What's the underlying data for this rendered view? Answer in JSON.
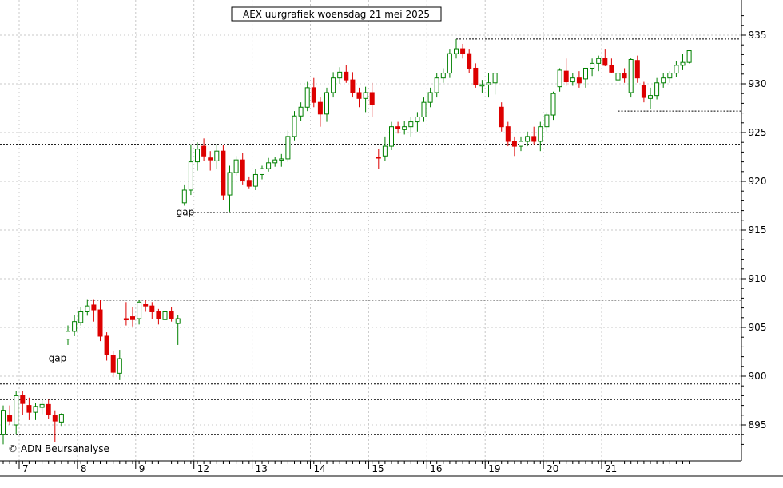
{
  "chart_data": {
    "type": "candlestick",
    "title": "AEX uurgrafiek woensdag 21 mei 2025",
    "credit": "© ADN Beursanalyse",
    "ylim": [
      891,
      937
    ],
    "y_ticks": [
      895,
      900,
      905,
      910,
      915,
      920,
      925,
      930,
      935
    ],
    "x_day_labels": [
      "7",
      "8",
      "9",
      "12",
      "13",
      "14",
      "15",
      "16",
      "19",
      "20",
      "21"
    ],
    "bars_per_day": 9,
    "grid": true,
    "annotations": [
      {
        "text": "gap",
        "bar": 7,
        "y": 901.5,
        "color": "#b0b0b0"
      },
      {
        "text": "gap",
        "bar": 26,
        "y": 916.5,
        "color": "#000000"
      }
    ],
    "levels": [
      {
        "y": 894.0,
        "from_bar": 0,
        "to_bar": 109
      },
      {
        "y": 897.6,
        "from_bar": 0,
        "to_bar": 109
      },
      {
        "y": 899.2,
        "from_bar": 0,
        "to_bar": 109
      },
      {
        "y": 907.8,
        "from_bar": 13,
        "to_bar": 109
      },
      {
        "y": 916.8,
        "from_bar": 29,
        "to_bar": 109
      },
      {
        "y": 923.8,
        "from_bar": 0,
        "to_bar": 109
      },
      {
        "y": 927.2,
        "from_bar": 95,
        "to_bar": 109
      },
      {
        "y": 934.6,
        "from_bar": 70,
        "to_bar": 109
      }
    ],
    "candles": [
      [
        894,
        897,
        893,
        896.5
      ],
      [
        896,
        897,
        895,
        895.4
      ],
      [
        895,
        898.5,
        894,
        898
      ],
      [
        898,
        898.5,
        896,
        897.2
      ],
      [
        897,
        897.8,
        895.5,
        896.3
      ],
      [
        896.3,
        897.3,
        895.5,
        896.9
      ],
      [
        896.8,
        897.7,
        896.1,
        897.1
      ],
      [
        897.1,
        897.6,
        895.6,
        896.1
      ],
      [
        896,
        896.5,
        893.2,
        895.4
      ],
      [
        895.3,
        896.2,
        894.9,
        896.1
      ],
      [
        903.8,
        905.2,
        903.2,
        904.6
      ],
      [
        904.6,
        906.3,
        904.1,
        905.6
      ],
      [
        905.5,
        907.1,
        905.2,
        906.6
      ],
      [
        906.6,
        907.9,
        906.2,
        907.2
      ],
      [
        907.3,
        907.9,
        905.6,
        906.8
      ],
      [
        906.8,
        907.8,
        903.6,
        904.1
      ],
      [
        904.1,
        904.5,
        901.6,
        902.2
      ],
      [
        902.1,
        902.6,
        899.9,
        900.4
      ],
      [
        900.3,
        902.7,
        899.6,
        901.8
      ],
      [
        905.9,
        907.6,
        905.2,
        905.8
      ],
      [
        906.1,
        907.1,
        905.1,
        905.8
      ],
      [
        905.9,
        907.8,
        905.3,
        907.6
      ],
      [
        907.4,
        907.8,
        906.6,
        907.2
      ],
      [
        907.2,
        907.6,
        905.9,
        906.6
      ],
      [
        906.6,
        906.9,
        905.3,
        905.9
      ],
      [
        905.8,
        907.3,
        905.5,
        906.6
      ],
      [
        906.6,
        907.1,
        905.6,
        905.9
      ],
      [
        905.4,
        906.3,
        903.2,
        905.9
      ],
      [
        917.8,
        919.6,
        917.5,
        919.1
      ],
      [
        919.1,
        923.8,
        918.6,
        922.0
      ],
      [
        922.0,
        924.0,
        921.1,
        923.3
      ],
      [
        923.6,
        924.4,
        922.1,
        922.6
      ],
      [
        922.4,
        923.1,
        921.1,
        922.2
      ],
      [
        922.1,
        923.8,
        921.3,
        923.1
      ],
      [
        923.1,
        923.7,
        918.1,
        918.6
      ],
      [
        918.6,
        921.6,
        916.9,
        920.9
      ],
      [
        920.9,
        922.6,
        920.6,
        922.2
      ],
      [
        922.2,
        922.9,
        919.6,
        920.1
      ],
      [
        920.1,
        920.5,
        919.2,
        919.5
      ],
      [
        919.5,
        921.3,
        919.1,
        920.7
      ],
      [
        920.7,
        921.6,
        920.2,
        921.3
      ],
      [
        921.3,
        922.4,
        921.0,
        921.9
      ],
      [
        921.9,
        922.5,
        921.5,
        922.2
      ],
      [
        922.2,
        922.8,
        921.5,
        922.3
      ],
      [
        922.3,
        925.2,
        922.0,
        924.6
      ],
      [
        924.6,
        927.2,
        924.2,
        926.7
      ],
      [
        926.7,
        928.1,
        926.2,
        927.6
      ],
      [
        927.6,
        930.2,
        927.2,
        929.6
      ],
      [
        929.6,
        930.6,
        927.6,
        928.1
      ],
      [
        928.1,
        928.6,
        925.6,
        926.9
      ],
      [
        926.9,
        929.6,
        926.1,
        929.1
      ],
      [
        929.1,
        931.2,
        928.6,
        930.6
      ],
      [
        930.6,
        931.7,
        930.0,
        931.2
      ],
      [
        931.2,
        931.9,
        930.1,
        930.4
      ],
      [
        930.4,
        931.2,
        928.6,
        929.1
      ],
      [
        929.1,
        929.6,
        927.6,
        928.5
      ],
      [
        928.5,
        929.7,
        927.1,
        929.1
      ],
      [
        929.1,
        930.1,
        926.6,
        927.9
      ],
      [
        922.5,
        923.3,
        921.3,
        922.4
      ],
      [
        922.6,
        924.6,
        922.1,
        923.6
      ],
      [
        923.6,
        926.1,
        923.2,
        925.6
      ],
      [
        925.6,
        926.1,
        924.9,
        925.4
      ],
      [
        925.3,
        926.2,
        924.8,
        925.6
      ],
      [
        925.6,
        926.6,
        924.6,
        926.1
      ],
      [
        926.1,
        927.1,
        925.1,
        926.6
      ],
      [
        926.6,
        928.6,
        926.1,
        928.1
      ],
      [
        928.1,
        929.6,
        927.6,
        929.1
      ],
      [
        929.1,
        931.1,
        928.6,
        930.6
      ],
      [
        930.6,
        931.6,
        930.1,
        931.1
      ],
      [
        931.1,
        933.6,
        930.6,
        933.1
      ],
      [
        933.1,
        934.6,
        932.6,
        933.6
      ],
      [
        933.6,
        934.1,
        932.6,
        933.1
      ],
      [
        933.1,
        933.6,
        931.1,
        931.6
      ],
      [
        931.6,
        932.1,
        929.6,
        929.9
      ],
      [
        929.9,
        930.4,
        929.1,
        929.9
      ],
      [
        929.9,
        931.1,
        928.6,
        930.1
      ],
      [
        930.1,
        931.1,
        928.9,
        931.1
      ],
      [
        927.6,
        928.1,
        925.1,
        925.6
      ],
      [
        925.6,
        926.1,
        923.6,
        924.1
      ],
      [
        924.1,
        924.6,
        922.6,
        923.6
      ],
      [
        923.6,
        924.6,
        923.1,
        924.1
      ],
      [
        924.1,
        925.1,
        923.6,
        924.6
      ],
      [
        924.6,
        925.6,
        923.8,
        924.1
      ],
      [
        924.1,
        926.1,
        923.1,
        925.6
      ],
      [
        925.6,
        927.1,
        925.1,
        926.8
      ],
      [
        926.8,
        929.2,
        926.3,
        929.0
      ],
      [
        929.7,
        931.6,
        929.2,
        931.4
      ],
      [
        931.3,
        932.6,
        929.8,
        930.2
      ],
      [
        930.2,
        931.1,
        929.8,
        930.6
      ],
      [
        930.6,
        931.3,
        929.6,
        930.1
      ],
      [
        930.5,
        931.6,
        929.6,
        931.6
      ],
      [
        931.6,
        932.6,
        930.8,
        932.1
      ],
      [
        932.1,
        932.9,
        931.3,
        932.6
      ],
      [
        932.6,
        933.6,
        931.8,
        931.9
      ],
      [
        931.9,
        932.6,
        931.1,
        931.2
      ],
      [
        930.4,
        931.7,
        930.1,
        931.1
      ],
      [
        931.1,
        931.6,
        930.1,
        930.6
      ],
      [
        929.1,
        932.7,
        928.6,
        932.5
      ],
      [
        932.4,
        932.9,
        930.1,
        930.6
      ],
      [
        929.8,
        930.2,
        928.1,
        928.6
      ],
      [
        928.5,
        929.6,
        927.4,
        928.8
      ],
      [
        928.8,
        930.6,
        928.4,
        930.1
      ],
      [
        930.1,
        931.1,
        929.6,
        930.6
      ],
      [
        930.6,
        931.3,
        930.1,
        931.1
      ],
      [
        931.1,
        932.3,
        930.7,
        931.9
      ],
      [
        931.9,
        933.1,
        931.4,
        932.2
      ],
      [
        932.2,
        933.5,
        932.1,
        933.4
      ]
    ]
  }
}
